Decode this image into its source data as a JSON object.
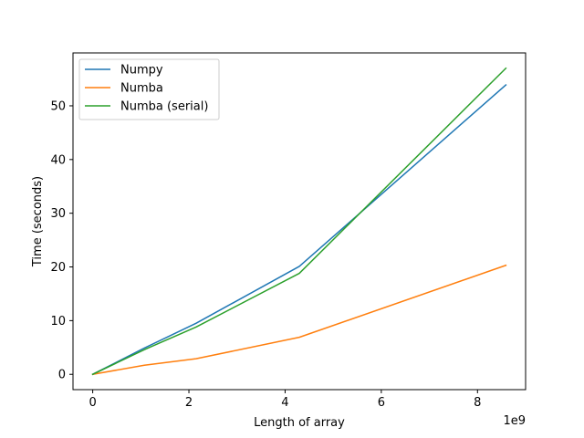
{
  "chart_data": {
    "type": "line",
    "title": "",
    "xlabel": "Length of array",
    "ylabel": "Time (seconds)",
    "x_offset_label": "1e9",
    "x_scale": 1000000000,
    "x": [
      0,
      1073741824,
      2147483648,
      4294967296,
      8589934592
    ],
    "xlim": [
      -410000000,
      9000000000
    ],
    "ylim": [
      -2.85,
      59.85
    ],
    "x_ticks": [
      0,
      2000000000,
      4000000000,
      6000000000,
      8000000000
    ],
    "x_tick_labels": [
      "0",
      "2",
      "4",
      "6",
      "8"
    ],
    "y_ticks": [
      0,
      10,
      20,
      30,
      40,
      50
    ],
    "y_tick_labels": [
      "0",
      "10",
      "20",
      "30",
      "40",
      "50"
    ],
    "grid": false,
    "legend_position": "top-left",
    "series": [
      {
        "name": "Numpy",
        "color": "#1f77b4",
        "values": [
          0,
          4.9,
          9.5,
          20.1,
          53.9
        ]
      },
      {
        "name": "Numba",
        "color": "#ff7f0e",
        "values": [
          0,
          1.7,
          2.9,
          6.9,
          20.3
        ]
      },
      {
        "name": "Numba (serial)",
        "color": "#2ca02c",
        "values": [
          0,
          4.6,
          8.8,
          18.8,
          57.0
        ]
      }
    ]
  }
}
